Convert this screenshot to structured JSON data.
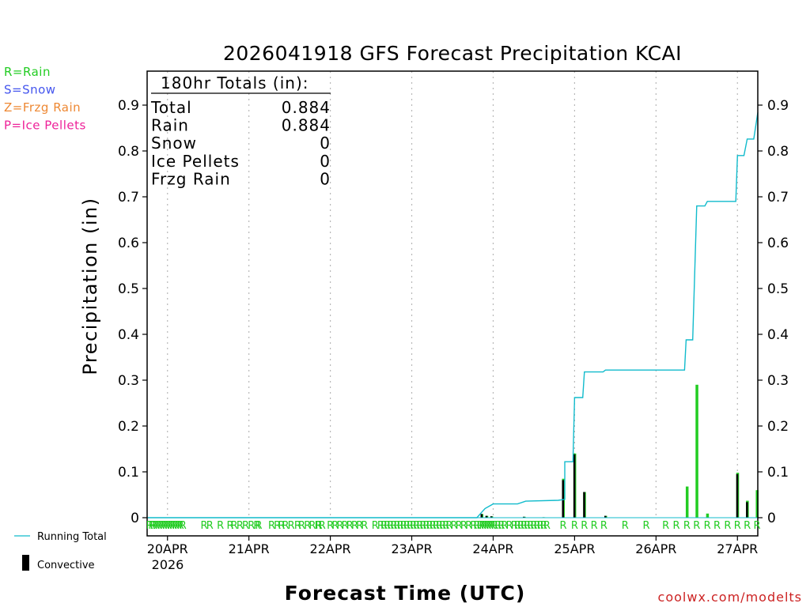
{
  "chart_data": {
    "type": "bar+line",
    "title": "2026041918 GFS Forecast Precipitation KCAI",
    "ylabel": "Precipitation (in)",
    "xlabel": "Forecast Time (UTC)",
    "ylim": [
      0,
      0.97
    ],
    "xlim": [
      -0.25,
      7.25
    ],
    "y_ticks": [
      0,
      0.1,
      0.2,
      0.3,
      0.4,
      0.5,
      0.6,
      0.7,
      0.8,
      0.9
    ],
    "y_tick_labels": [
      "0",
      "0.1",
      "0.2",
      "0.3",
      "0.4",
      "0.5",
      "0.6",
      "0.7",
      "0.8",
      "0.9"
    ],
    "x_ticks": [
      0,
      1,
      2,
      3,
      4,
      5,
      6,
      7
    ],
    "x_tick_labels": [
      "20APR",
      "21APR",
      "22APR",
      "23APR",
      "24APR",
      "25APR",
      "26APR",
      "27APR"
    ],
    "year_label": "2026",
    "legend_types": [
      {
        "label": "R=Rain",
        "color": "#22cc22"
      },
      {
        "label": "S=Snow",
        "color": "#4455ee"
      },
      {
        "label": "Z=Frzg Rain",
        "color": "#ee8833"
      },
      {
        "label": "P=Ice Pellets",
        "color": "#ee2299"
      }
    ],
    "legend_series": [
      {
        "label": "Running Total",
        "color": "#11bbcc"
      },
      {
        "label": "Convective",
        "color": "#000000"
      }
    ],
    "totals": {
      "header": "180hr Totals (in):",
      "rows": [
        {
          "label": "Total",
          "value": "0.884"
        },
        {
          "label": "Rain",
          "value": "0.884"
        },
        {
          "label": "Snow",
          "value": "0"
        },
        {
          "label": "Ice Pellets",
          "value": "0"
        },
        {
          "label": "Frzg Rain",
          "value": "0"
        }
      ]
    },
    "running_total": {
      "name": "Running Total",
      "color": "#11bbcc",
      "points": [
        [
          -0.25,
          0
        ],
        [
          3.8,
          0
        ],
        [
          3.85,
          0.01
        ],
        [
          3.9,
          0.02
        ],
        [
          4.0,
          0.03
        ],
        [
          4.3,
          0.03
        ],
        [
          4.4,
          0.036
        ],
        [
          4.8,
          0.038
        ],
        [
          4.88,
          0.04
        ],
        [
          4.88,
          0.122
        ],
        [
          4.98,
          0.122
        ],
        [
          5.0,
          0.262
        ],
        [
          5.1,
          0.262
        ],
        [
          5.12,
          0.318
        ],
        [
          5.35,
          0.318
        ],
        [
          5.38,
          0.322
        ],
        [
          6.35,
          0.322
        ],
        [
          6.37,
          0.388
        ],
        [
          6.45,
          0.388
        ],
        [
          6.5,
          0.68
        ],
        [
          6.6,
          0.68
        ],
        [
          6.63,
          0.69
        ],
        [
          6.98,
          0.69
        ],
        [
          7.0,
          0.79
        ],
        [
          7.08,
          0.79
        ],
        [
          7.12,
          0.826
        ],
        [
          7.2,
          0.826
        ],
        [
          7.25,
          0.884
        ]
      ]
    },
    "bars": [
      {
        "x": 3.86,
        "rain": 0.008,
        "convective": 0.008
      },
      {
        "x": 3.92,
        "rain": 0.004,
        "convective": 0.004
      },
      {
        "x": 3.98,
        "rain": 0.003,
        "convective": 0.003
      },
      {
        "x": 4.38,
        "rain": 0.002,
        "convective": 0.002
      },
      {
        "x": 4.62,
        "rain": 0.001,
        "convective": 0.001
      },
      {
        "x": 4.86,
        "rain": 0.085,
        "convective": 0.082
      },
      {
        "x": 5.0,
        "rain": 0.14,
        "convective": 0.138
      },
      {
        "x": 5.12,
        "rain": 0.056,
        "convective": 0.056
      },
      {
        "x": 5.38,
        "rain": 0.004,
        "convective": 0.004
      },
      {
        "x": 6.38,
        "rain": 0.068,
        "convective": 0
      },
      {
        "x": 6.5,
        "rain": 0.29,
        "convective": 0
      },
      {
        "x": 6.63,
        "rain": 0.009,
        "convective": 0
      },
      {
        "x": 7.0,
        "rain": 0.098,
        "convective": 0.095
      },
      {
        "x": 7.12,
        "rain": 0.037,
        "convective": 0.034
      },
      {
        "x": 7.24,
        "rain": 0.06,
        "convective": 0
      }
    ],
    "type_strip": {
      "label": "R",
      "color": "#22cc22",
      "x": [
        -0.22,
        -0.19,
        -0.17,
        -0.14,
        -0.11,
        -0.08,
        -0.05,
        -0.02,
        0.01,
        0.04,
        0.07,
        0.1,
        0.13,
        0.16,
        0.19,
        0.45,
        0.52,
        0.65,
        0.77,
        0.82,
        0.89,
        0.96,
        1.03,
        1.1,
        1.12,
        1.28,
        1.35,
        1.4,
        1.45,
        1.52,
        1.6,
        1.65,
        1.72,
        1.78,
        1.85,
        1.86,
        1.9,
        2.0,
        2.06,
        2.12,
        2.18,
        2.24,
        2.3,
        2.36,
        2.42,
        2.55,
        2.62,
        2.66,
        2.7,
        2.74,
        2.78,
        2.82,
        2.86,
        2.9,
        2.94,
        2.98,
        3.02,
        3.06,
        3.1,
        3.14,
        3.18,
        3.22,
        3.26,
        3.3,
        3.34,
        3.38,
        3.42,
        3.46,
        3.52,
        3.58,
        3.64,
        3.7,
        3.76,
        3.8,
        3.84,
        3.87,
        3.9,
        3.93,
        3.96,
        3.99,
        4.02,
        4.06,
        4.1,
        4.14,
        4.2,
        4.26,
        4.3,
        4.34,
        4.38,
        4.42,
        4.46,
        4.5,
        4.54,
        4.58,
        4.62,
        4.66,
        4.86,
        5.0,
        5.12,
        5.24,
        5.36,
        5.62,
        5.88,
        6.12,
        6.25,
        6.38,
        6.5,
        6.63,
        6.75,
        6.88,
        7.0,
        7.12,
        7.24
      ]
    },
    "watermark": "coolwx.com/modelts"
  }
}
